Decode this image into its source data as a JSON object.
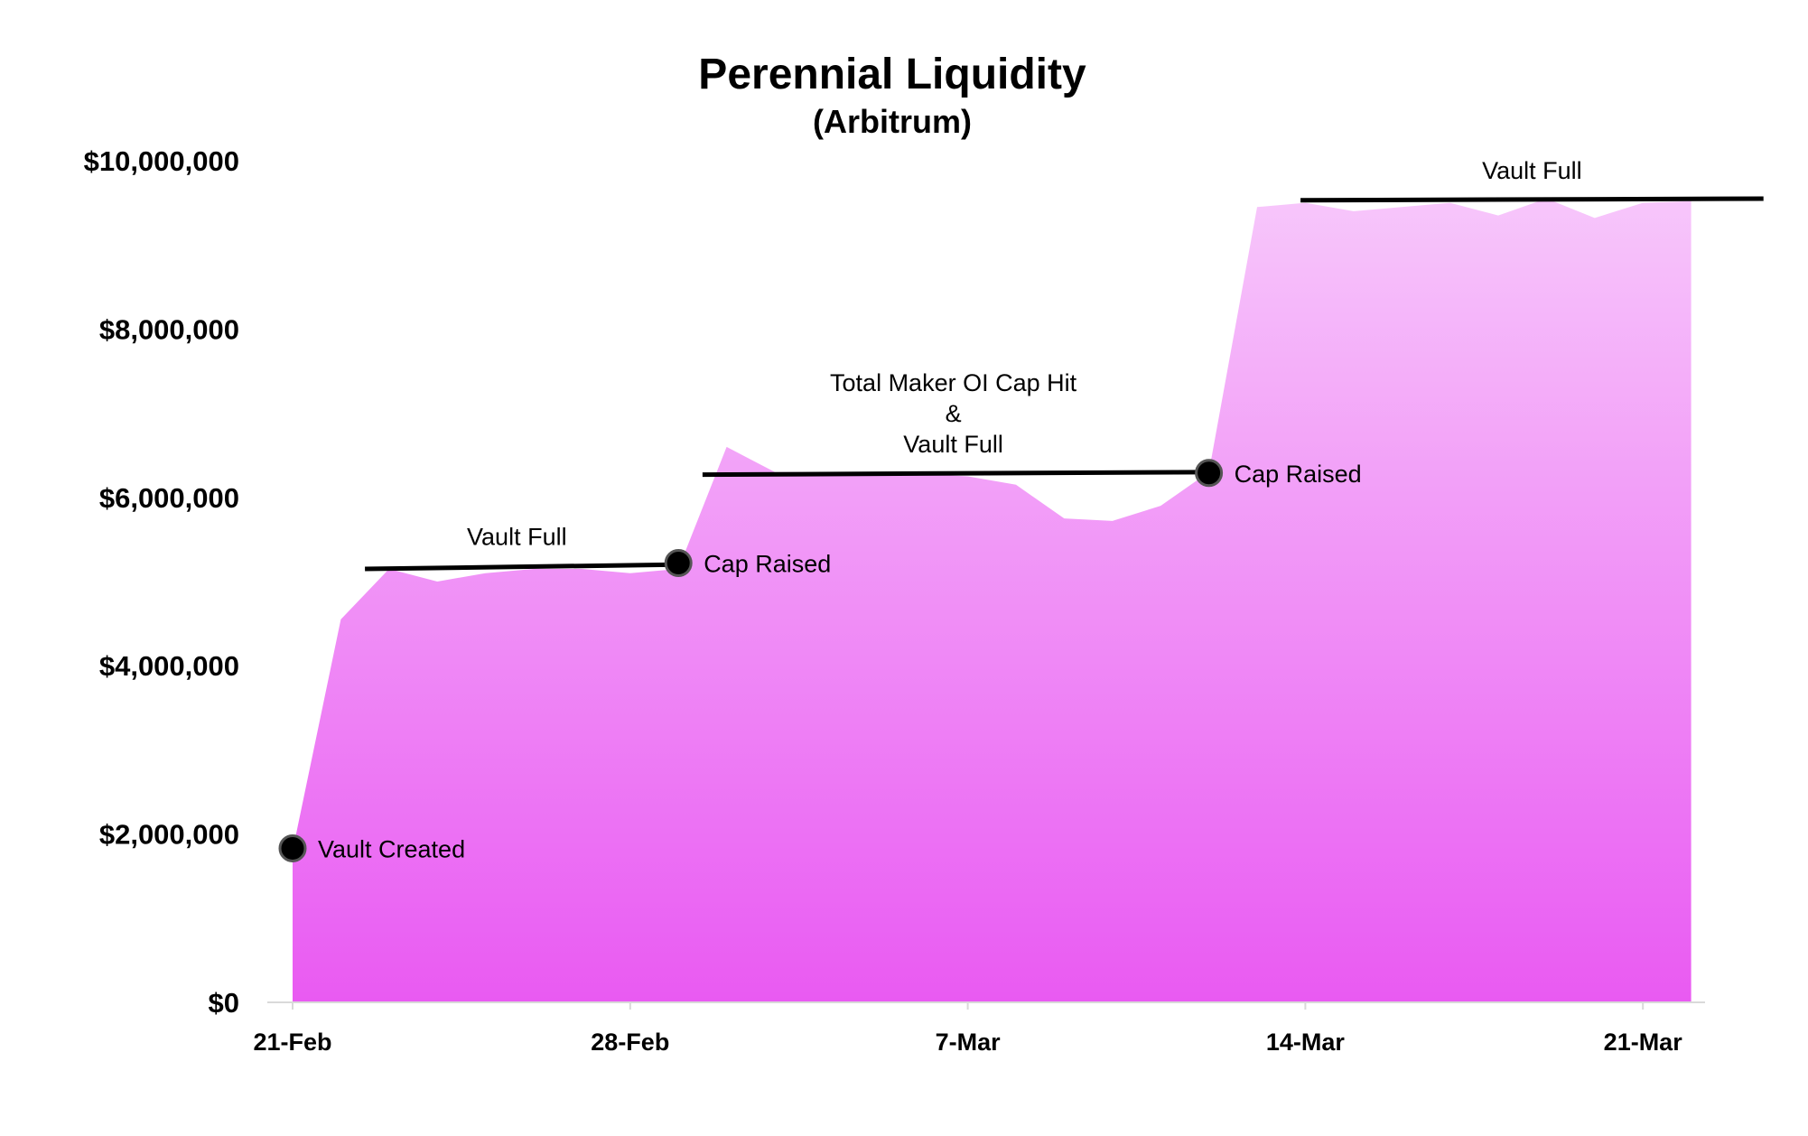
{
  "chart_data": {
    "type": "area",
    "title": "Perennial Liquidity",
    "subtitle": "(Arbitrum)",
    "xlabel": "",
    "ylabel": "",
    "ylim": [
      0,
      10000000
    ],
    "y_ticks": [
      0,
      2000000,
      4000000,
      6000000,
      8000000,
      10000000
    ],
    "y_tick_labels": [
      "$0",
      "$2,000,000",
      "$4,000,000",
      "$6,000,000",
      "$8,000,000",
      "$10,000,000"
    ],
    "x_tick_labels": [
      "21-Feb",
      "28-Feb",
      "7-Mar",
      "14-Mar",
      "21-Mar"
    ],
    "x_ticks": [
      "2023-02-21",
      "2023-02-28",
      "2023-03-07",
      "2023-03-14",
      "2023-03-21"
    ],
    "grid": false,
    "fill_color_top": "#f7c6fb",
    "fill_color_bottom": "#e95af2",
    "x": [
      "2023-02-21",
      "2023-02-22",
      "2023-02-23",
      "2023-02-24",
      "2023-02-25",
      "2023-02-26",
      "2023-02-27",
      "2023-02-28",
      "2023-03-01",
      "2023-03-02",
      "2023-03-03",
      "2023-03-04",
      "2023-03-05",
      "2023-03-06",
      "2023-03-07",
      "2023-03-08",
      "2023-03-09",
      "2023-03-10",
      "2023-03-11",
      "2023-03-12",
      "2023-03-13",
      "2023-03-14",
      "2023-03-15",
      "2023-03-16",
      "2023-03-17",
      "2023-03-18",
      "2023-03-19",
      "2023-03-20",
      "2023-03-21",
      "2023-03-22"
    ],
    "values": [
      1800000,
      4550000,
      5150000,
      5000000,
      5100000,
      5150000,
      5150000,
      5100000,
      5150000,
      6600000,
      6300000,
      6300000,
      6300000,
      6280000,
      6250000,
      6150000,
      5750000,
      5720000,
      5900000,
      6300000,
      9450000,
      9500000,
      9400000,
      9450000,
      9500000,
      9350000,
      9550000,
      9320000,
      9500000,
      9520000
    ],
    "annotations": {
      "points": [
        {
          "x": "2023-02-21",
          "y": 1830000,
          "label": "Vault Created"
        },
        {
          "x": "2023-03-01",
          "y": 5220000,
          "label": "Cap Raised"
        },
        {
          "x": "2023-03-12",
          "y": 6290000,
          "label": "Cap Raised"
        }
      ],
      "lines": [
        {
          "x_start": "2023-02-22.5",
          "x_end": "2023-02-28.8",
          "y_start": 5150000,
          "y_end": 5200000,
          "label_lines": [
            "Vault Full"
          ]
        },
        {
          "x_start": "2023-03-01.5",
          "x_end": "2023-03-11.9",
          "y_start": 6270000,
          "y_end": 6300000,
          "label_lines": [
            "Total Maker OI Cap Hit",
            "&",
            "Vault Full"
          ]
        },
        {
          "x_start": "2023-03-13.9",
          "x_end": "2023-03-23.5",
          "y_start": 9530000,
          "y_end": 9550000,
          "label_lines": [
            "Vault Full"
          ]
        }
      ]
    }
  }
}
